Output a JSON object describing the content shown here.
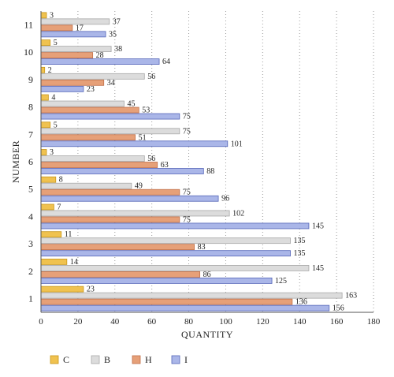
{
  "chart_data": {
    "type": "bar",
    "orientation": "horizontal",
    "categories": [
      "1",
      "2",
      "3",
      "4",
      "5",
      "6",
      "7",
      "8",
      "9",
      "10",
      "11"
    ],
    "series": [
      {
        "name": "C",
        "color": "#f0c24f",
        "stroke": "#c9971a",
        "values": [
          23,
          14,
          11,
          7,
          8,
          3,
          5,
          4,
          2,
          5,
          3
        ]
      },
      {
        "name": "B",
        "color": "#dcdcdc",
        "stroke": "#a8a8a8",
        "values": [
          163,
          145,
          135,
          102,
          49,
          56,
          75,
          45,
          56,
          38,
          37
        ]
      },
      {
        "name": "H",
        "color": "#e6a078",
        "stroke": "#c0704a",
        "values": [
          136,
          86,
          83,
          75,
          75,
          63,
          51,
          53,
          34,
          28,
          17
        ]
      },
      {
        "name": "I",
        "color": "#aab6e8",
        "stroke": "#5566b8",
        "values": [
          156,
          125,
          135,
          145,
          96,
          88,
          101,
          75,
          23,
          64,
          35
        ]
      }
    ],
    "xlabel": "QUANTITY",
    "ylabel": "NUMBER",
    "xlim": [
      0,
      180
    ],
    "xticks": [
      0,
      20,
      40,
      60,
      80,
      100,
      120,
      140,
      160,
      180
    ],
    "grid": "vertical dotted",
    "legend": "bottom"
  }
}
